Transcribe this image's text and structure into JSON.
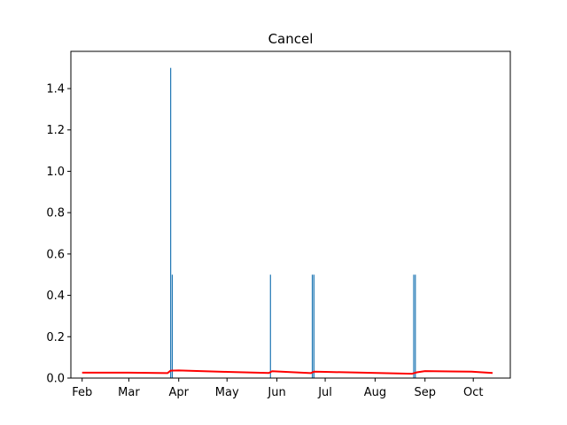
{
  "chart_data": {
    "type": "bar",
    "title": "Cancel",
    "xlabel": "",
    "ylabel": "",
    "x_axis": {
      "type": "date",
      "range": [
        "2016-01-25",
        "2016-10-24"
      ],
      "ticks": [
        {
          "date": "2016-02-01",
          "label": "Feb"
        },
        {
          "date": "2016-03-01",
          "label": "Mar"
        },
        {
          "date": "2016-04-01",
          "label": "Apr"
        },
        {
          "date": "2016-05-01",
          "label": "May"
        },
        {
          "date": "2016-06-01",
          "label": "Jun"
        },
        {
          "date": "2016-07-01",
          "label": "Jul"
        },
        {
          "date": "2016-08-01",
          "label": "Aug"
        },
        {
          "date": "2016-09-01",
          "label": "Sep"
        },
        {
          "date": "2016-10-01",
          "label": "Oct"
        }
      ]
    },
    "y_axis": {
      "range": [
        0,
        1.58
      ],
      "ticks": [
        0.0,
        0.2,
        0.4,
        0.6,
        0.8,
        1.0,
        1.2,
        1.4
      ],
      "tick_labels": [
        "0.0",
        "0.2",
        "0.4",
        "0.6",
        "0.8",
        "1.0",
        "1.2",
        "1.4"
      ]
    },
    "grid": false,
    "colors": {
      "bars": "#1f77b4",
      "line": "#ff0000"
    },
    "bars": [
      {
        "date": "2016-03-27",
        "value": 1.5
      },
      {
        "date": "2016-03-28",
        "value": 0.5
      },
      {
        "date": "2016-05-28",
        "value": 0.5
      },
      {
        "date": "2016-06-23",
        "value": 0.5
      },
      {
        "date": "2016-06-24",
        "value": 0.5
      },
      {
        "date": "2016-08-25",
        "value": 0.5
      },
      {
        "date": "2016-08-26",
        "value": 0.5
      }
    ],
    "line": {
      "points": [
        {
          "date": "2016-02-01",
          "value": 0.026
        },
        {
          "date": "2016-03-01",
          "value": 0.026
        },
        {
          "date": "2016-03-25",
          "value": 0.024
        },
        {
          "date": "2016-03-27",
          "value": 0.036
        },
        {
          "date": "2016-04-01",
          "value": 0.037
        },
        {
          "date": "2016-05-01",
          "value": 0.03
        },
        {
          "date": "2016-05-27",
          "value": 0.025
        },
        {
          "date": "2016-05-29",
          "value": 0.033
        },
        {
          "date": "2016-06-22",
          "value": 0.024
        },
        {
          "date": "2016-06-24",
          "value": 0.031
        },
        {
          "date": "2016-07-01",
          "value": 0.03
        },
        {
          "date": "2016-08-24",
          "value": 0.021
        },
        {
          "date": "2016-08-27",
          "value": 0.028
        },
        {
          "date": "2016-09-01",
          "value": 0.034
        },
        {
          "date": "2016-09-30",
          "value": 0.031
        },
        {
          "date": "2016-10-13",
          "value": 0.025
        }
      ]
    }
  }
}
